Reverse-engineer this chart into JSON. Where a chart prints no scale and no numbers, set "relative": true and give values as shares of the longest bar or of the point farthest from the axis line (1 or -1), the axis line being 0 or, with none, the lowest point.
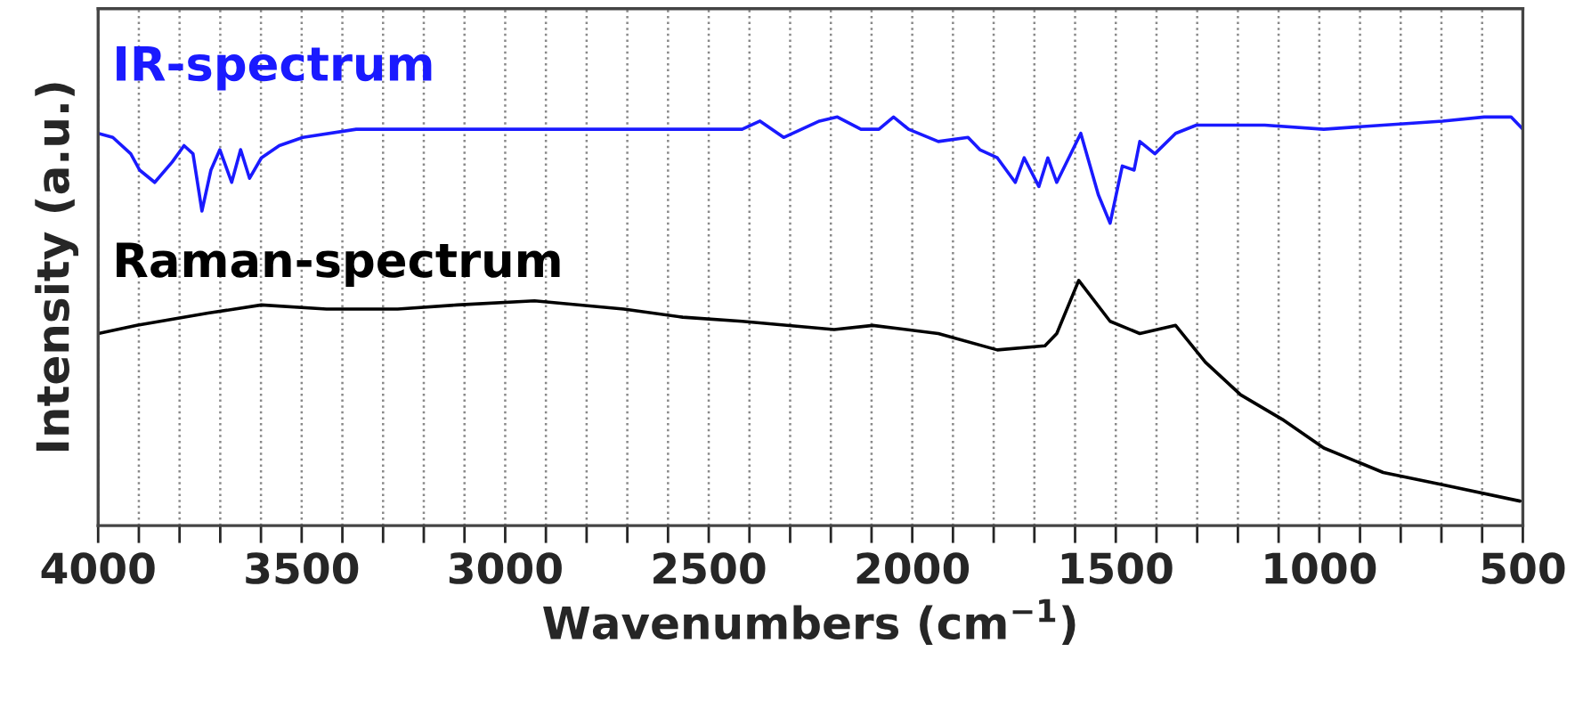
{
  "chart_data": {
    "type": "line",
    "relative": true,
    "xlabel": "Wavenumbers (cm$^{−1}$)",
    "ylabel": "Intensity (a.u.)",
    "xlim": [
      4000,
      500
    ],
    "xticks": [
      4000,
      {
        "value": 3900,
        "label": null
      },
      {
        "value": 3800,
        "label": null
      },
      {
        "value": 3700,
        "label": null
      },
      {
        "value": 3600,
        "label": null
      },
      3500,
      {
        "value": 3400,
        "label": null
      },
      {
        "value": 3300,
        "label": null
      },
      {
        "value": 3200,
        "label": null
      },
      {
        "value": 3100,
        "label": null
      },
      3000,
      {
        "value": 2900,
        "label": null
      },
      {
        "value": 2800,
        "label": null
      },
      {
        "value": 2700,
        "label": null
      },
      {
        "value": 2600,
        "label": null
      },
      2500,
      {
        "value": 2400,
        "label": null
      },
      {
        "value": 2300,
        "label": null
      },
      {
        "value": 2200,
        "label": null
      },
      {
        "value": 2100,
        "label": null
      },
      2000,
      {
        "value": 1900,
        "label": null
      },
      {
        "value": 1800,
        "label": null
      },
      {
        "value": 1700,
        "label": null
      },
      {
        "value": 1600,
        "label": null
      },
      1500,
      {
        "value": 1400,
        "label": null
      },
      {
        "value": 1300,
        "label": null
      },
      {
        "value": 1200,
        "label": null
      },
      {
        "value": 1100,
        "label": null
      },
      1000,
      {
        "value": 900,
        "label": null
      },
      {
        "value": 800,
        "label": null
      },
      {
        "value": 700,
        "label": null
      },
      {
        "value": 600,
        "label": null
      },
      500
    ],
    "grid": "x",
    "line_style": "solid",
    "series": [
      {
        "name": "IR-spectrum",
        "color": "#1a1aff",
        "x": [
          4000,
          3964,
          3920,
          3898,
          3861,
          3818,
          3789,
          3767,
          3745,
          3723,
          3701,
          3672,
          3650,
          3628,
          3599,
          3555,
          3497,
          3366,
          3147,
          2855,
          2636,
          2418,
          2374,
          2316,
          2228,
          2184,
          2126,
          2082,
          2046,
          2009,
          1936,
          1863,
          1834,
          1791,
          1747,
          1725,
          1689,
          1667,
          1645,
          1586,
          1543,
          1514,
          1484,
          1455,
          1441,
          1404,
          1353,
          1302,
          1134,
          989,
          843,
          697,
          595,
          529,
          500
        ],
        "values": [
          0.96,
          0.95,
          0.91,
          0.87,
          0.84,
          0.89,
          0.93,
          0.91,
          0.77,
          0.87,
          0.92,
          0.84,
          0.92,
          0.85,
          0.9,
          0.93,
          0.95,
          0.97,
          0.97,
          0.97,
          0.97,
          0.97,
          0.99,
          0.95,
          0.99,
          1.0,
          0.97,
          0.97,
          1.0,
          0.97,
          0.94,
          0.95,
          0.92,
          0.9,
          0.84,
          0.9,
          0.83,
          0.9,
          0.84,
          0.96,
          0.81,
          0.74,
          0.88,
          0.87,
          0.94,
          0.91,
          0.96,
          0.98,
          0.98,
          0.97,
          0.98,
          0.99,
          1.0,
          1.0,
          0.97
        ]
      },
      {
        "name": "Raman-spectrum",
        "color": "#000000",
        "x": [
          4000,
          3905,
          3730,
          3599,
          3439,
          3264,
          3118,
          2928,
          2709,
          2564,
          2418,
          2192,
          2097,
          1936,
          1791,
          1674,
          1645,
          1591,
          1514,
          1441,
          1353,
          1280,
          1193,
          1091,
          989,
          843,
          697,
          507
        ],
        "values": [
          0.47,
          0.49,
          0.52,
          0.54,
          0.53,
          0.53,
          0.54,
          0.55,
          0.53,
          0.51,
          0.5,
          0.48,
          0.49,
          0.47,
          0.43,
          0.44,
          0.47,
          0.6,
          0.5,
          0.47,
          0.49,
          0.4,
          0.32,
          0.26,
          0.19,
          0.13,
          0.1,
          0.06
        ]
      }
    ]
  }
}
